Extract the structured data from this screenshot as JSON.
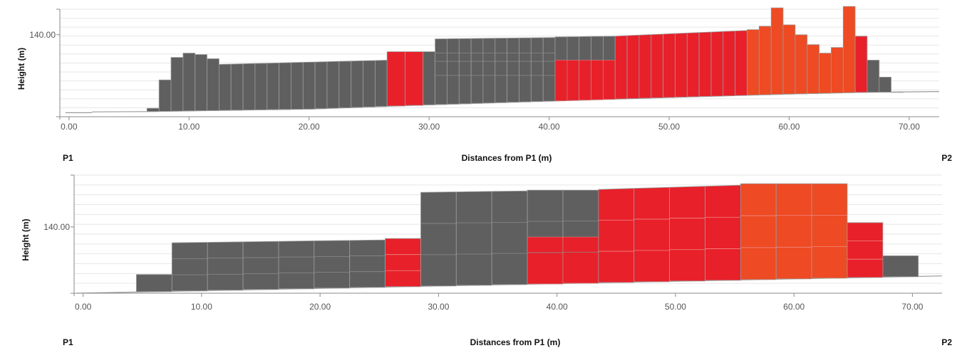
{
  "chart_data": [
    {
      "type": "bar",
      "xlabel": "Distances from P1 (m)",
      "ylabel": "Height (m)",
      "xlim": [
        -1,
        72.5
      ],
      "ylim": [
        111,
        149
      ],
      "x_ticks": [
        "0.00",
        "10.00",
        "20.00",
        "30.00",
        "40.00",
        "50.00",
        "60.00",
        "70.00"
      ],
      "x_tick_values": [
        0,
        10,
        20,
        30,
        40,
        50,
        60,
        70
      ],
      "y_ticks": [
        "140.00"
      ],
      "y_tick_values": [
        140
      ],
      "grid": true,
      "start_label": "P1",
      "end_label": "P2",
      "colors": {
        "gray": "#5f5f5f",
        "red": "#e8202a",
        "orange": "#ee4a23"
      },
      "terrain": [
        [
          -0.3,
          112.4
        ],
        [
          1.8,
          112.4
        ],
        [
          2.0,
          112.7
        ],
        [
          6.5,
          112.8
        ],
        [
          9.0,
          113.0
        ],
        [
          20.0,
          113.7
        ],
        [
          30.0,
          115.2
        ],
        [
          40.0,
          116.5
        ],
        [
          50.0,
          117.8
        ],
        [
          60.0,
          119.0
        ],
        [
          66.0,
          119.6
        ],
        [
          72.5,
          119.9
        ]
      ],
      "buildings": [
        {
          "x0": 6.5,
          "x1": 7.5,
          "top": 114.0,
          "color": "gray"
        },
        {
          "x0": 7.5,
          "x1": 8.5,
          "top": 124.0,
          "color": "gray"
        },
        {
          "x0": 8.5,
          "x1": 9.5,
          "top": 132.0,
          "color": "gray"
        },
        {
          "x0": 9.5,
          "x1": 10.5,
          "top": 133.5,
          "color": "gray"
        },
        {
          "x0": 10.5,
          "x1": 11.5,
          "top": 133.0,
          "color": "gray"
        },
        {
          "x0": 11.5,
          "x1": 12.5,
          "top": 131.5,
          "color": "gray"
        },
        {
          "x0": 12.5,
          "x1": 26.5,
          "top": 129.5,
          "top_end": 131.0,
          "color": "gray",
          "cells": 14
        },
        {
          "x0": 26.5,
          "x1": 29.5,
          "top": 134.0,
          "color": "red",
          "cells": 2
        },
        {
          "x0": 29.5,
          "x1": 30.5,
          "top": 134.0,
          "color": "gray"
        },
        {
          "x0": 30.5,
          "x1": 40.5,
          "top": 138.5,
          "top_end": 139.0,
          "color": "gray",
          "cells": 10,
          "rows": [
            125.6,
            130.6,
            133.5
          ]
        },
        {
          "x0": 40.5,
          "x1": 45.5,
          "top": 139.2,
          "top_end": 139.5,
          "color": "gray",
          "cells": 5,
          "lower_top": 131.0,
          "lower_color": "red"
        },
        {
          "x0": 45.5,
          "x1": 56.5,
          "top": 139.5,
          "top_end": 141.5,
          "color": "red",
          "cells": 11
        },
        {
          "x0": 56.5,
          "x1": 57.5,
          "top": 141.8,
          "color": "orange"
        },
        {
          "x0": 57.5,
          "x1": 58.5,
          "top": 143.0,
          "color": "orange"
        },
        {
          "x0": 58.5,
          "x1": 59.5,
          "top": 149.5,
          "color": "orange"
        },
        {
          "x0": 59.5,
          "x1": 60.5,
          "top": 143.5,
          "color": "orange"
        },
        {
          "x0": 60.5,
          "x1": 61.5,
          "top": 140.0,
          "color": "orange"
        },
        {
          "x0": 61.5,
          "x1": 62.5,
          "top": 136.5,
          "color": "orange"
        },
        {
          "x0": 62.5,
          "x1": 63.5,
          "top": 133.5,
          "color": "orange"
        },
        {
          "x0": 63.5,
          "x1": 64.5,
          "top": 135.5,
          "color": "orange"
        },
        {
          "x0": 64.5,
          "x1": 65.5,
          "top": 150.0,
          "color": "orange"
        },
        {
          "x0": 65.5,
          "x1": 66.5,
          "top": 139.5,
          "color": "red"
        },
        {
          "x0": 66.5,
          "x1": 67.5,
          "top": 131.0,
          "color": "gray"
        },
        {
          "x0": 67.5,
          "x1": 68.5,
          "top": 125.0,
          "color": "gray"
        },
        {
          "x0": 68.5,
          "x1": 69.5,
          "top": 119.6,
          "color": "gray"
        }
      ]
    },
    {
      "type": "bar",
      "xlabel": "Distances from P1 (m)",
      "ylabel": "Height (m)",
      "xlim": [
        -1,
        72.5
      ],
      "ylim": [
        117,
        158
      ],
      "x_ticks": [
        "0.00",
        "10.00",
        "20.00",
        "30.00",
        "40.00",
        "50.00",
        "60.00",
        "70.00"
      ],
      "x_tick_values": [
        0,
        10,
        20,
        30,
        40,
        50,
        60,
        70
      ],
      "y_ticks": [
        "140.00"
      ],
      "y_tick_values": [
        140
      ],
      "grid": true,
      "start_label": "P1",
      "end_label": "P2",
      "colors": {
        "gray": "#5f5f5f",
        "red": "#e8202a",
        "orange": "#ee4a23"
      },
      "terrain": [
        [
          -0.5,
          117.0
        ],
        [
          72.5,
          123.0
        ]
      ],
      "buildings": [
        {
          "x0": 4.5,
          "x1": 7.5,
          "top": 123.5,
          "color": "gray"
        },
        {
          "x0": 7.5,
          "x1": 25.5,
          "top": 134.5,
          "top_end": 135.5,
          "color": "gray",
          "cells": 6
        },
        {
          "x0": 25.5,
          "x1": 28.5,
          "top": 136.0,
          "color": "red"
        },
        {
          "x0": 28.5,
          "x1": 37.5,
          "top": 152.0,
          "top_end": 152.5,
          "color": "gray",
          "cells": 3
        },
        {
          "x0": 37.5,
          "x1": 43.5,
          "top": 152.8,
          "color": "gray",
          "cells": 2,
          "lower_top": 136.5,
          "lower_color": "red"
        },
        {
          "x0": 43.5,
          "x1": 55.5,
          "top": 153.0,
          "top_end": 154.5,
          "color": "red",
          "cells": 4
        },
        {
          "x0": 55.5,
          "x1": 64.5,
          "top": 155.0,
          "color": "orange",
          "cells": 3
        },
        {
          "x0": 64.5,
          "x1": 67.5,
          "top": 141.5,
          "color": "red"
        },
        {
          "x0": 67.5,
          "x1": 70.5,
          "top": 130.0,
          "color": "gray"
        }
      ]
    }
  ]
}
